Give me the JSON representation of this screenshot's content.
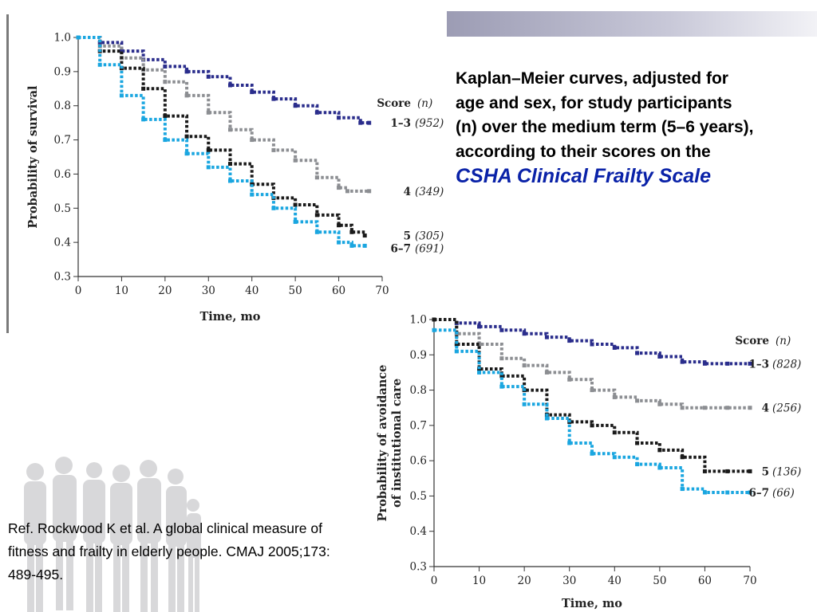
{
  "description": {
    "lines": [
      "Kaplan–Meier curves, adjusted for",
      "age and sex, for study participants",
      "(n) over the medium term (5–6 years),",
      "according to their scores on the"
    ],
    "highlight": "CSHA Clinical Frailty Scale",
    "highlight_color": "#0a22a8"
  },
  "reference": {
    "lines": [
      "Ref. Rockwood K et al. A global clinical measure of",
      "fitness and frailty in elderly people. CMAJ 2005;173:",
      "489-495."
    ]
  },
  "chart_data": [
    {
      "type": "line",
      "title": "",
      "xlabel": "Time, mo",
      "ylabel": "Probability of survival",
      "xlim": [
        0,
        70
      ],
      "ylim": [
        0.3,
        1.0
      ],
      "x_ticks": [
        0,
        10,
        20,
        30,
        40,
        50,
        60,
        70
      ],
      "y_ticks": [
        0.3,
        0.4,
        0.5,
        0.6,
        0.7,
        0.8,
        0.9,
        1.0
      ],
      "y_tick_labels": [
        "0.3",
        "0.4",
        "0.5",
        "0.6",
        "0.7",
        "0.8",
        "0.9",
        "1.0"
      ],
      "grid": false,
      "legend": {
        "position": "right",
        "header_score": "Score",
        "header_n": "(n)"
      },
      "series": [
        {
          "name": "1–3",
          "n": "(952)",
          "color": "#2a2d8c",
          "x": [
            0,
            5,
            10,
            15,
            20,
            25,
            30,
            35,
            40,
            45,
            50,
            55,
            60,
            65,
            67
          ],
          "y": [
            1.0,
            0.985,
            0.96,
            0.935,
            0.915,
            0.9,
            0.885,
            0.86,
            0.84,
            0.82,
            0.8,
            0.78,
            0.765,
            0.75,
            0.75
          ]
        },
        {
          "name": "4",
          "n": "(349)",
          "color": "#8c8e92",
          "x": [
            0,
            5,
            10,
            15,
            20,
            25,
            30,
            35,
            40,
            45,
            50,
            55,
            60,
            62,
            67
          ],
          "y": [
            1.0,
            0.975,
            0.94,
            0.905,
            0.87,
            0.83,
            0.78,
            0.73,
            0.7,
            0.67,
            0.64,
            0.59,
            0.56,
            0.55,
            0.55
          ]
        },
        {
          "name": "5",
          "n": "(305)",
          "color": "#1a1a1a",
          "x": [
            0,
            5,
            10,
            15,
            20,
            25,
            30,
            35,
            40,
            45,
            50,
            55,
            60,
            63,
            66
          ],
          "y": [
            1.0,
            0.96,
            0.91,
            0.85,
            0.77,
            0.71,
            0.67,
            0.63,
            0.57,
            0.53,
            0.51,
            0.48,
            0.45,
            0.43,
            0.42
          ]
        },
        {
          "name": "6–7",
          "n": "(691)",
          "color": "#1aa6e0",
          "x": [
            0,
            5,
            10,
            15,
            20,
            25,
            30,
            35,
            40,
            45,
            50,
            55,
            60,
            63,
            66
          ],
          "y": [
            1.0,
            0.92,
            0.83,
            0.76,
            0.7,
            0.66,
            0.62,
            0.58,
            0.54,
            0.5,
            0.46,
            0.43,
            0.4,
            0.39,
            0.39
          ]
        }
      ]
    },
    {
      "type": "line",
      "title": "",
      "xlabel": "Time, mo",
      "ylabel": "Probability of avoidance of institutional care",
      "ylabel_lines": [
        "Probability of avoidance",
        "of institutional care"
      ],
      "xlim": [
        0,
        70
      ],
      "ylim": [
        0.3,
        1.0
      ],
      "x_ticks": [
        0,
        10,
        20,
        30,
        40,
        50,
        60,
        70
      ],
      "y_ticks": [
        0.3,
        0.4,
        0.5,
        0.6,
        0.7,
        0.8,
        0.9,
        1.0
      ],
      "y_tick_labels": [
        "0.3",
        "0.4",
        "0.5",
        "0.6",
        "0.7",
        "0.8",
        "0.9",
        "1.0"
      ],
      "grid": false,
      "legend": {
        "position": "right",
        "header_score": "Score",
        "header_n": "(n)"
      },
      "series": [
        {
          "name": "1–3",
          "n": "(828)",
          "color": "#2a2d8c",
          "x": [
            0,
            5,
            10,
            15,
            20,
            25,
            30,
            35,
            40,
            45,
            50,
            55,
            60,
            65,
            70
          ],
          "y": [
            1.0,
            0.99,
            0.98,
            0.97,
            0.96,
            0.95,
            0.94,
            0.93,
            0.92,
            0.905,
            0.895,
            0.88,
            0.875,
            0.875,
            0.875
          ]
        },
        {
          "name": "4",
          "n": "(256)",
          "color": "#8c8e92",
          "x": [
            0,
            5,
            10,
            15,
            20,
            25,
            30,
            35,
            40,
            45,
            50,
            55,
            60,
            65,
            70
          ],
          "y": [
            1.0,
            0.96,
            0.93,
            0.89,
            0.87,
            0.85,
            0.83,
            0.8,
            0.78,
            0.77,
            0.76,
            0.75,
            0.75,
            0.75,
            0.75
          ]
        },
        {
          "name": "5",
          "n": "(136)",
          "color": "#1a1a1a",
          "x": [
            0,
            5,
            10,
            15,
            20,
            25,
            30,
            35,
            40,
            45,
            50,
            55,
            60,
            65,
            70
          ],
          "y": [
            1.0,
            0.93,
            0.86,
            0.84,
            0.8,
            0.73,
            0.71,
            0.7,
            0.68,
            0.65,
            0.63,
            0.61,
            0.57,
            0.57,
            0.57
          ]
        },
        {
          "name": "6–7",
          "n": "(66)",
          "color": "#1aa6e0",
          "x": [
            0,
            5,
            10,
            15,
            20,
            25,
            30,
            35,
            40,
            45,
            50,
            55,
            60,
            65,
            70
          ],
          "y": [
            0.97,
            0.91,
            0.85,
            0.81,
            0.76,
            0.72,
            0.65,
            0.62,
            0.61,
            0.59,
            0.58,
            0.52,
            0.51,
            0.51,
            0.51
          ]
        }
      ]
    }
  ]
}
